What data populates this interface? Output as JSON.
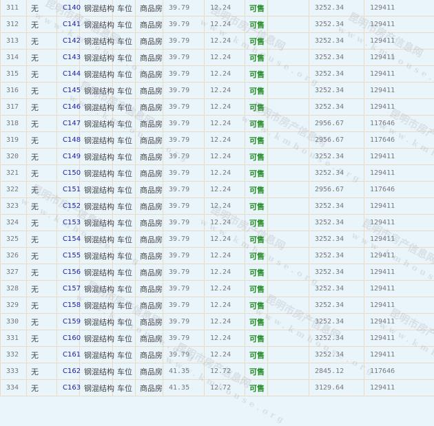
{
  "colors": {
    "background": "#eaf5fb",
    "border": "#e6dcc3",
    "link": "#1a1aa6",
    "status": "#1e8a1e"
  },
  "watermark": {
    "name": "昆明市房产信息网",
    "url": "www.kmhouse.org"
  },
  "rows": [
    {
      "no": "311",
      "floor": "无",
      "code": "C140",
      "structure": "钢混结构",
      "use": "车位",
      "type": "商品房",
      "area": "39.79",
      "inner": "12.24",
      "status": "可售",
      "blank": "",
      "unit_price": "3252.34",
      "total": "129411"
    },
    {
      "no": "312",
      "floor": "无",
      "code": "C141",
      "structure": "钢混结构",
      "use": "车位",
      "type": "商品房",
      "area": "39.79",
      "inner": "12.24",
      "status": "可售",
      "blank": "",
      "unit_price": "3252.34",
      "total": "129411"
    },
    {
      "no": "313",
      "floor": "无",
      "code": "C142",
      "structure": "钢混结构",
      "use": "车位",
      "type": "商品房",
      "area": "39.79",
      "inner": "12.24",
      "status": "可售",
      "blank": "",
      "unit_price": "3252.34",
      "total": "129411"
    },
    {
      "no": "314",
      "floor": "无",
      "code": "C143",
      "structure": "钢混结构",
      "use": "车位",
      "type": "商品房",
      "area": "39.79",
      "inner": "12.24",
      "status": "可售",
      "blank": "",
      "unit_price": "3252.34",
      "total": "129411"
    },
    {
      "no": "315",
      "floor": "无",
      "code": "C144",
      "structure": "钢混结构",
      "use": "车位",
      "type": "商品房",
      "area": "39.79",
      "inner": "12.24",
      "status": "可售",
      "blank": "",
      "unit_price": "3252.34",
      "total": "129411"
    },
    {
      "no": "316",
      "floor": "无",
      "code": "C145",
      "structure": "钢混结构",
      "use": "车位",
      "type": "商品房",
      "area": "39.79",
      "inner": "12.24",
      "status": "可售",
      "blank": "",
      "unit_price": "3252.34",
      "total": "129411"
    },
    {
      "no": "317",
      "floor": "无",
      "code": "C146",
      "structure": "钢混结构",
      "use": "车位",
      "type": "商品房",
      "area": "39.79",
      "inner": "12.24",
      "status": "可售",
      "blank": "",
      "unit_price": "3252.34",
      "total": "129411"
    },
    {
      "no": "318",
      "floor": "无",
      "code": "C147",
      "structure": "钢混结构",
      "use": "车位",
      "type": "商品房",
      "area": "39.79",
      "inner": "12.24",
      "status": "可售",
      "blank": "",
      "unit_price": "2956.67",
      "total": "117646"
    },
    {
      "no": "319",
      "floor": "无",
      "code": "C148",
      "structure": "钢混结构",
      "use": "车位",
      "type": "商品房",
      "area": "39.79",
      "inner": "12.24",
      "status": "可售",
      "blank": "",
      "unit_price": "2956.67",
      "total": "117646"
    },
    {
      "no": "320",
      "floor": "无",
      "code": "C149",
      "structure": "钢混结构",
      "use": "车位",
      "type": "商品房",
      "area": "39.79",
      "inner": "12.24",
      "status": "可售",
      "blank": "",
      "unit_price": "3252.34",
      "total": "129411"
    },
    {
      "no": "321",
      "floor": "无",
      "code": "C150",
      "structure": "钢混结构",
      "use": "车位",
      "type": "商品房",
      "area": "39.79",
      "inner": "12.24",
      "status": "可售",
      "blank": "",
      "unit_price": "3252.34",
      "total": "129411"
    },
    {
      "no": "322",
      "floor": "无",
      "code": "C151",
      "structure": "钢混结构",
      "use": "车位",
      "type": "商品房",
      "area": "39.79",
      "inner": "12.24",
      "status": "可售",
      "blank": "",
      "unit_price": "2956.67",
      "total": "117646"
    },
    {
      "no": "323",
      "floor": "无",
      "code": "C152",
      "structure": "钢混结构",
      "use": "车位",
      "type": "商品房",
      "area": "39.79",
      "inner": "12.24",
      "status": "可售",
      "blank": "",
      "unit_price": "3252.34",
      "total": "129411"
    },
    {
      "no": "324",
      "floor": "无",
      "code": "C153",
      "structure": "钢混结构",
      "use": "车位",
      "type": "商品房",
      "area": "39.79",
      "inner": "12.24",
      "status": "可售",
      "blank": "",
      "unit_price": "3252.34",
      "total": "129411"
    },
    {
      "no": "325",
      "floor": "无",
      "code": "C154",
      "structure": "钢混结构",
      "use": "车位",
      "type": "商品房",
      "area": "39.79",
      "inner": "12.24",
      "status": "可售",
      "blank": "",
      "unit_price": "3252.34",
      "total": "129411"
    },
    {
      "no": "326",
      "floor": "无",
      "code": "C155",
      "structure": "钢混结构",
      "use": "车位",
      "type": "商品房",
      "area": "39.79",
      "inner": "12.24",
      "status": "可售",
      "blank": "",
      "unit_price": "3252.34",
      "total": "129411"
    },
    {
      "no": "327",
      "floor": "无",
      "code": "C156",
      "structure": "钢混结构",
      "use": "车位",
      "type": "商品房",
      "area": "39.79",
      "inner": "12.24",
      "status": "可售",
      "blank": "",
      "unit_price": "3252.34",
      "total": "129411"
    },
    {
      "no": "328",
      "floor": "无",
      "code": "C157",
      "structure": "钢混结构",
      "use": "车位",
      "type": "商品房",
      "area": "39.79",
      "inner": "12.24",
      "status": "可售",
      "blank": "",
      "unit_price": "3252.34",
      "total": "129411"
    },
    {
      "no": "329",
      "floor": "无",
      "code": "C158",
      "structure": "钢混结构",
      "use": "车位",
      "type": "商品房",
      "area": "39.79",
      "inner": "12.24",
      "status": "可售",
      "blank": "",
      "unit_price": "3252.34",
      "total": "129411"
    },
    {
      "no": "330",
      "floor": "无",
      "code": "C159",
      "structure": "钢混结构",
      "use": "车位",
      "type": "商品房",
      "area": "39.79",
      "inner": "12.24",
      "status": "可售",
      "blank": "",
      "unit_price": "3252.34",
      "total": "129411"
    },
    {
      "no": "331",
      "floor": "无",
      "code": "C160",
      "structure": "钢混结构",
      "use": "车位",
      "type": "商品房",
      "area": "39.79",
      "inner": "12.24",
      "status": "可售",
      "blank": "",
      "unit_price": "3252.34",
      "total": "129411"
    },
    {
      "no": "332",
      "floor": "无",
      "code": "C161",
      "structure": "钢混结构",
      "use": "车位",
      "type": "商品房",
      "area": "39.79",
      "inner": "12.24",
      "status": "可售",
      "blank": "",
      "unit_price": "3252.34",
      "total": "129411"
    },
    {
      "no": "333",
      "floor": "无",
      "code": "C162",
      "structure": "钢混结构",
      "use": "车位",
      "type": "商品房",
      "area": "41.35",
      "inner": "12.72",
      "status": "可售",
      "blank": "",
      "unit_price": "2845.12",
      "total": "117646"
    },
    {
      "no": "334",
      "floor": "无",
      "code": "C163",
      "structure": "钢混结构",
      "use": "车位",
      "type": "商品房",
      "area": "41.35",
      "inner": "12.72",
      "status": "可售",
      "blank": "",
      "unit_price": "3129.64",
      "total": "129411"
    }
  ]
}
